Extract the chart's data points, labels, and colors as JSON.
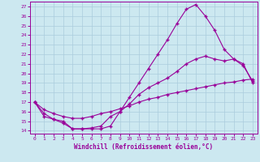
{
  "xlabel": "Windchill (Refroidissement éolien,°C)",
  "bg_color": "#cce8f0",
  "grid_color": "#aaccdd",
  "line_color": "#990099",
  "marker": "+",
  "xlim": [
    -0.5,
    23.5
  ],
  "ylim": [
    13.7,
    27.5
  ],
  "xticks": [
    0,
    1,
    2,
    3,
    4,
    5,
    6,
    7,
    8,
    9,
    10,
    11,
    12,
    13,
    14,
    15,
    16,
    17,
    18,
    19,
    20,
    21,
    22,
    23
  ],
  "yticks": [
    14,
    15,
    16,
    17,
    18,
    19,
    20,
    21,
    22,
    23,
    24,
    25,
    26,
    27
  ],
  "curve1_x": [
    0,
    1,
    2,
    3,
    4,
    5,
    6,
    7,
    8,
    9,
    10,
    11,
    12,
    13,
    14,
    15,
    16,
    17,
    18,
    19,
    20,
    21,
    22,
    23
  ],
  "curve1_y": [
    17.0,
    15.8,
    15.2,
    15.0,
    14.2,
    14.2,
    14.2,
    14.2,
    14.5,
    16.0,
    17.5,
    19.0,
    20.5,
    22.0,
    23.5,
    25.2,
    26.7,
    27.2,
    26.0,
    24.5,
    22.5,
    21.5,
    21.0,
    19.0
  ],
  "curve2_x": [
    0,
    1,
    2,
    3,
    4,
    5,
    6,
    7,
    8,
    9,
    10,
    11,
    12,
    13,
    14,
    15,
    16,
    17,
    18,
    19,
    20,
    21,
    22,
    23
  ],
  "curve2_y": [
    17.0,
    15.5,
    15.2,
    14.8,
    14.2,
    14.2,
    14.3,
    14.5,
    15.5,
    16.0,
    16.8,
    17.8,
    18.5,
    19.0,
    19.5,
    20.2,
    21.0,
    21.5,
    21.8,
    21.5,
    21.3,
    21.5,
    20.8,
    19.2
  ],
  "curve3_x": [
    0,
    1,
    2,
    3,
    4,
    5,
    6,
    7,
    8,
    9,
    10,
    11,
    12,
    13,
    14,
    15,
    16,
    17,
    18,
    19,
    20,
    21,
    22,
    23
  ],
  "curve3_y": [
    17.0,
    16.2,
    15.8,
    15.5,
    15.3,
    15.3,
    15.5,
    15.8,
    16.0,
    16.3,
    16.6,
    17.0,
    17.3,
    17.5,
    17.8,
    18.0,
    18.2,
    18.4,
    18.6,
    18.8,
    19.0,
    19.1,
    19.3,
    19.4
  ],
  "tick_fontsize": 4.5,
  "label_fontsize": 5.5,
  "markersize": 3,
  "linewidth": 0.8
}
